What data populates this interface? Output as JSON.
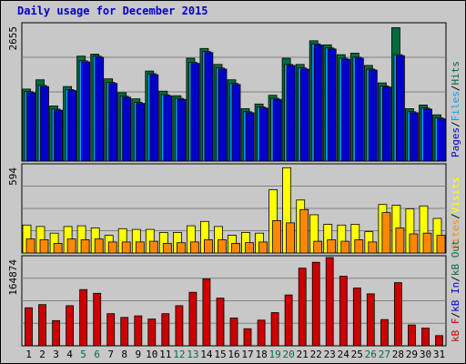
{
  "title": "Daily usage for December 2015",
  "chart_data": {
    "type": "bar",
    "days": [
      "1",
      "2",
      "3",
      "4",
      "5",
      "6",
      "7",
      "8",
      "9",
      "10",
      "11",
      "12",
      "13",
      "14",
      "15",
      "16",
      "17",
      "18",
      "19",
      "20",
      "21",
      "22",
      "23",
      "24",
      "25",
      "26",
      "27",
      "28",
      "29",
      "30",
      "31"
    ],
    "weekend_days": [
      "5",
      "6",
      "12",
      "13",
      "19",
      "20",
      "26",
      "27"
    ],
    "colors": {
      "pages": "#0000cc",
      "files": "#00a0ff",
      "hits": "#006c3c",
      "visits": "#ffff00",
      "sites": "#ff8800",
      "kb_in": "#0000cc",
      "kb_out": "#006c3c",
      "kb_f": "#cc0000",
      "background": "#c8c8c8",
      "weekend": "#006c3c"
    },
    "panels": [
      {
        "id": "hits_files_pages",
        "max_label": "2655",
        "ylim": [
          0,
          2655
        ],
        "legend": [
          {
            "text": "Pages",
            "color": "#0000cc"
          },
          {
            "text": "/",
            "color": "#000000"
          },
          {
            "text": "Files",
            "color": "#00a0ff"
          },
          {
            "text": "/",
            "color": "#000000"
          },
          {
            "text": "Hits",
            "color": "#006c3c"
          }
        ],
        "series": [
          {
            "name": "Hits",
            "color": "#006c3c",
            "values": [
              1400,
              1580,
              1070,
              1450,
              2040,
              2080,
              1600,
              1330,
              1210,
              1750,
              1360,
              1270,
              2000,
              2190,
              1880,
              1580,
              1020,
              1110,
              1280,
              2000,
              1880,
              2340,
              2260,
              2070,
              2100,
              1860,
              1520,
              2595,
              1020,
              1090,
              900
            ]
          },
          {
            "name": "Files",
            "color": "#00a0ff",
            "values": [
              1350,
              1470,
              1010,
              1390,
              1950,
              2040,
              1530,
              1260,
              1140,
              1700,
              1290,
              1220,
              1920,
              2130,
              1810,
              1510,
              960,
              1050,
              1220,
              1880,
              1810,
              2280,
              2200,
              2000,
              2020,
              1790,
              1460,
              2070,
              960,
              1030,
              840
            ]
          },
          {
            "name": "Pages",
            "color": "#0000cc",
            "values": [
              1330,
              1450,
              990,
              1370,
              1930,
              2020,
              1510,
              1240,
              1120,
              1680,
              1270,
              1200,
              1900,
              2110,
              1790,
              1490,
              940,
              1030,
              1200,
              1860,
              1790,
              2260,
              2180,
              1980,
              2000,
              1770,
              1440,
              2050,
              940,
              1010,
              820
            ]
          }
        ]
      },
      {
        "id": "visits_sites",
        "max_label": "594",
        "ylim": [
          0,
          594
        ],
        "legend": [
          {
            "text": "Sites",
            "color": "#ff8800"
          },
          {
            "text": "/",
            "color": "#000000"
          },
          {
            "text": "Visits",
            "color": "#ffff00"
          }
        ],
        "series": [
          {
            "name": "Visits",
            "color": "#ffff00",
            "values": [
              190,
              180,
              135,
              180,
              185,
              170,
              120,
              165,
              160,
              160,
              140,
              140,
              185,
              215,
              180,
              120,
              140,
              135,
              430,
              580,
              360,
              260,
              195,
              190,
              195,
              145,
              330,
              325,
              300,
              320,
              235
            ]
          },
          {
            "name": "Sites",
            "color": "#ff8800",
            "values": [
              95,
              90,
              65,
              95,
              90,
              95,
              75,
              75,
              75,
              80,
              65,
              70,
              75,
              90,
              90,
              65,
              70,
              75,
              220,
              205,
              295,
              80,
              90,
              80,
              90,
              75,
              275,
              170,
              130,
              135,
              120
            ]
          }
        ]
      },
      {
        "id": "kbytes",
        "max_label": "164874",
        "ylim": [
          0,
          164874
        ],
        "legend": [
          {
            "text": "kB F",
            "color": "#cc0000"
          },
          {
            "text": "/",
            "color": "#000000"
          },
          {
            "text": "kB In",
            "color": "#0000cc"
          },
          {
            "text": "/",
            "color": "#000000"
          },
          {
            "text": "kB Out",
            "color": "#006c3c"
          }
        ],
        "series": [
          {
            "name": "kB F",
            "color": "#cc0000",
            "values": [
              71000,
              77000,
              47000,
              75000,
              105000,
              98000,
              60000,
              53000,
              56000,
              50000,
              60000,
              75000,
              100000,
              125000,
              89000,
              52000,
              32000,
              48000,
              62000,
              95000,
              145000,
              156000,
              166000,
              130000,
              108000,
              97000,
              49000,
              118000,
              39000,
              33000,
              19000
            ]
          }
        ]
      }
    ]
  }
}
